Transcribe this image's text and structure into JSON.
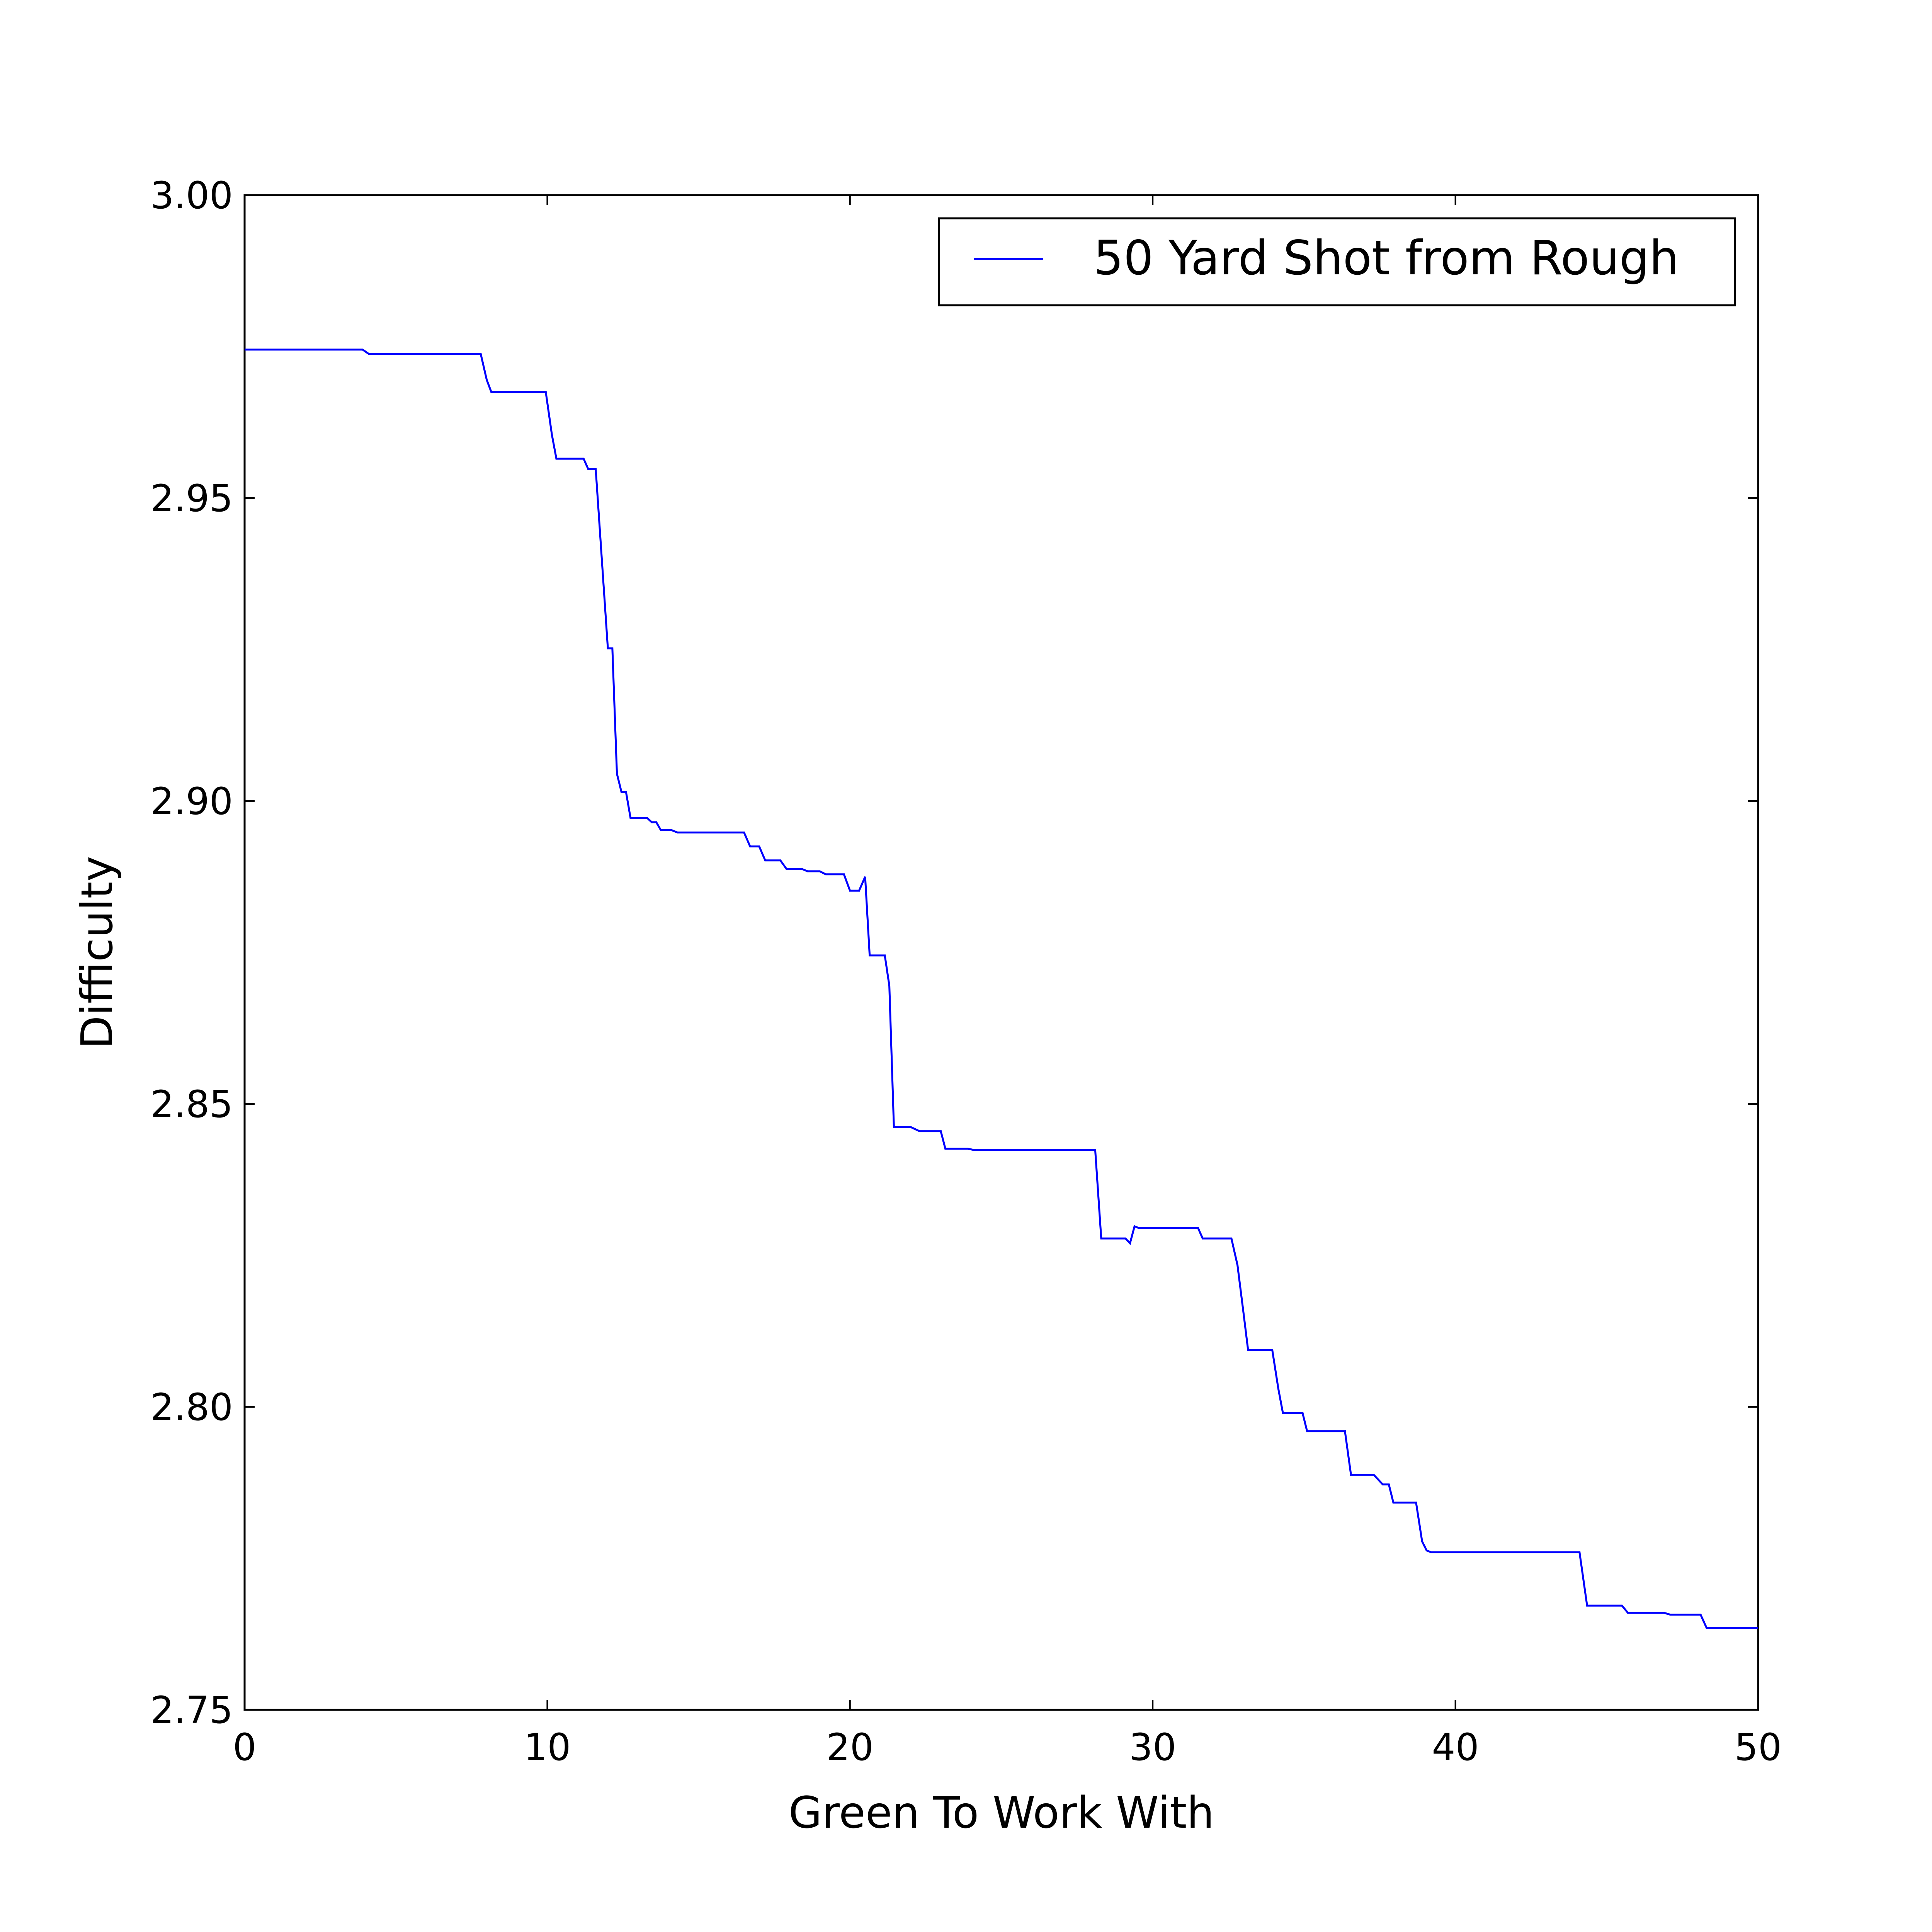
{
  "chart_data": {
    "type": "line",
    "title": "",
    "xlabel": "Green To Work With",
    "ylabel": "Difficulty",
    "xlim": [
      0,
      50
    ],
    "ylim": [
      2.75,
      3.0
    ],
    "xticks": [
      0,
      10,
      20,
      30,
      40,
      50
    ],
    "xtick_labels": [
      "0",
      "10",
      "20",
      "30",
      "40",
      "50"
    ],
    "yticks": [
      2.75,
      2.8,
      2.85,
      2.9,
      2.95,
      3.0
    ],
    "ytick_labels": [
      "2.75",
      "2.80",
      "2.85",
      "2.90",
      "2.95",
      "3.00"
    ],
    "grid": false,
    "legend_position": "top-right",
    "series": [
      {
        "name": "50 Yard Shot from Rough",
        "color": "#0000ff",
        "points": [
          [
            0,
            2.9745
          ],
          [
            3.9,
            2.9745
          ],
          [
            4.1,
            2.9738
          ],
          [
            7.8,
            2.9738
          ],
          [
            8.0,
            2.9695
          ],
          [
            8.15,
            2.9675
          ],
          [
            9.95,
            2.9675
          ],
          [
            10.15,
            2.9605
          ],
          [
            10.3,
            2.9565
          ],
          [
            11.2,
            2.9565
          ],
          [
            11.35,
            2.9548
          ],
          [
            11.6,
            2.9548
          ],
          [
            11.8,
            2.94
          ],
          [
            12.0,
            2.9252
          ],
          [
            12.15,
            2.9252
          ],
          [
            12.3,
            2.9045
          ],
          [
            12.45,
            2.9015
          ],
          [
            12.6,
            2.9015
          ],
          [
            12.75,
            2.8972
          ],
          [
            13.3,
            2.8972
          ],
          [
            13.45,
            2.8965
          ],
          [
            13.6,
            2.8965
          ],
          [
            13.75,
            2.8952
          ],
          [
            14.1,
            2.8952
          ],
          [
            14.3,
            2.8948
          ],
          [
            16.5,
            2.8948
          ],
          [
            16.7,
            2.8925
          ],
          [
            17.0,
            2.8925
          ],
          [
            17.2,
            2.8902
          ],
          [
            17.7,
            2.8902
          ],
          [
            17.9,
            2.8888
          ],
          [
            18.4,
            2.8888
          ],
          [
            18.6,
            2.8884
          ],
          [
            19.0,
            2.8884
          ],
          [
            19.2,
            2.8879
          ],
          [
            19.8,
            2.8879
          ],
          [
            20.0,
            2.8852
          ],
          [
            20.3,
            2.8852
          ],
          [
            20.5,
            2.8875
          ],
          [
            20.65,
            2.8745
          ],
          [
            21.15,
            2.8745
          ],
          [
            21.3,
            2.8695
          ],
          [
            21.45,
            2.8462
          ],
          [
            22.0,
            2.8462
          ],
          [
            22.3,
            2.8455
          ],
          [
            23.0,
            2.8455
          ],
          [
            23.15,
            2.8426
          ],
          [
            23.9,
            2.8426
          ],
          [
            24.1,
            2.8424
          ],
          [
            28.1,
            2.8424
          ],
          [
            28.3,
            2.8278
          ],
          [
            29.1,
            2.8278
          ],
          [
            29.25,
            2.827
          ],
          [
            29.4,
            2.8298
          ],
          [
            29.55,
            2.8295
          ],
          [
            31.5,
            2.8295
          ],
          [
            31.65,
            2.8278
          ],
          [
            32.6,
            2.8278
          ],
          [
            32.8,
            2.8234
          ],
          [
            33.0,
            2.8155
          ],
          [
            33.15,
            2.8094
          ],
          [
            33.95,
            2.8094
          ],
          [
            34.15,
            2.803
          ],
          [
            34.3,
            2.799
          ],
          [
            34.95,
            2.799
          ],
          [
            35.1,
            2.796
          ],
          [
            36.35,
            2.796
          ],
          [
            36.55,
            2.7888
          ],
          [
            37.3,
            2.7888
          ],
          [
            37.6,
            2.7872
          ],
          [
            37.8,
            2.7872
          ],
          [
            37.95,
            2.7842
          ],
          [
            38.7,
            2.7842
          ],
          [
            38.9,
            2.7778
          ],
          [
            39.05,
            2.7763
          ],
          [
            39.2,
            2.776
          ],
          [
            44.1,
            2.776
          ],
          [
            44.35,
            2.7672
          ],
          [
            45.5,
            2.7672
          ],
          [
            45.7,
            2.766
          ],
          [
            46.9,
            2.766
          ],
          [
            47.1,
            2.7657
          ],
          [
            48.1,
            2.7657
          ],
          [
            48.3,
            2.7635
          ],
          [
            50,
            2.7635
          ]
        ]
      }
    ]
  }
}
